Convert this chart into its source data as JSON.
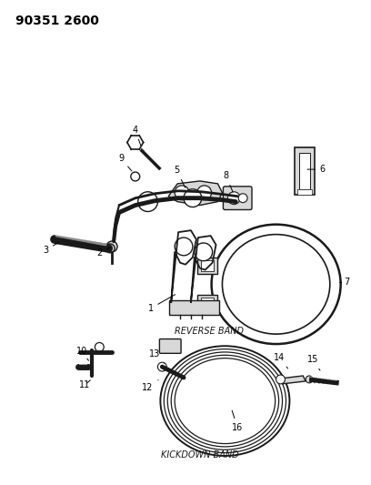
{
  "title": "90351 2600",
  "background_color": "#ffffff",
  "fig_width": 4.08,
  "fig_height": 5.33,
  "dpi": 100,
  "reverse_band_label": "REVERSE BAND",
  "kickdown_band_label": "KICKDOWN BAND",
  "line_color": "#1a1a1a",
  "gray_fill": "#b0b0b0",
  "light_gray": "#d8d8d8",
  "font_size_title": 10,
  "font_size_label": 6,
  "font_size_partnum": 7
}
